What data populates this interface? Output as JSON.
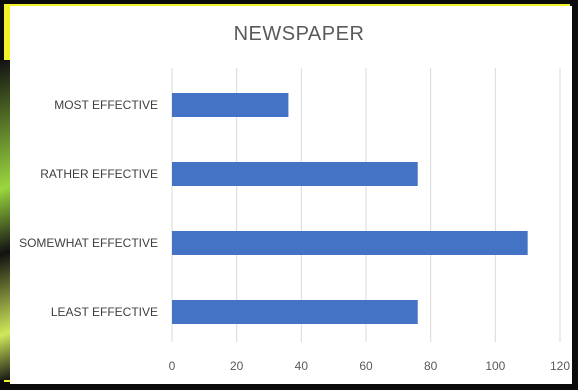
{
  "chart_data": {
    "type": "bar",
    "orientation": "horizontal",
    "title": "NEWSPAPER",
    "categories": [
      "MOST EFFECTIVE",
      "RATHER EFFECTIVE",
      "SOMEWHAT EFFECTIVE",
      "LEAST EFFECTIVE"
    ],
    "values": [
      36,
      76,
      110,
      76
    ],
    "xlim": [
      0,
      120
    ],
    "xticks": [
      "0",
      "20",
      "40",
      "60",
      "80",
      "100",
      "120"
    ],
    "grid": "vertical",
    "bar_color": "#4472c4"
  }
}
